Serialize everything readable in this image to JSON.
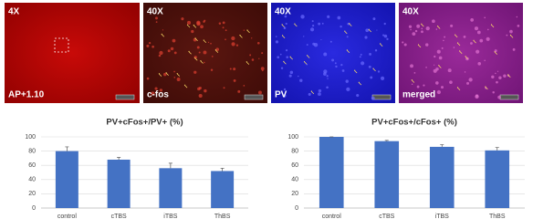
{
  "figure": {
    "panels": [
      {
        "magnification": "4X",
        "label": "AP+1.10"
      },
      {
        "magnification": "40X",
        "label": "c-fos"
      },
      {
        "magnification": "40X",
        "label": "PV"
      },
      {
        "magnification": "40X",
        "label": "merged"
      }
    ]
  },
  "chart_data": [
    {
      "type": "bar",
      "title": "PV+cFos+/PV+ (%)",
      "categories": [
        "control",
        "cTBS",
        "iTBS",
        "ThBS"
      ],
      "values": [
        80,
        68,
        56,
        52
      ],
      "errors": [
        6,
        3,
        7,
        4
      ],
      "color": "#4472c4",
      "ylim": [
        0,
        100
      ],
      "yticks": [
        0,
        20,
        40,
        60,
        80,
        100
      ],
      "grid": true
    },
    {
      "type": "bar",
      "title": "PV+cFos+/cFos+ (%)",
      "categories": [
        "control",
        "cTBS",
        "iTBS",
        "ThBS"
      ],
      "values": [
        100,
        94,
        86,
        81
      ],
      "errors": [
        0,
        1,
        3,
        4
      ],
      "color": "#4472c4",
      "ylim": [
        0,
        100
      ],
      "yticks": [
        0,
        20,
        40,
        60,
        80,
        100
      ],
      "grid": true
    }
  ]
}
